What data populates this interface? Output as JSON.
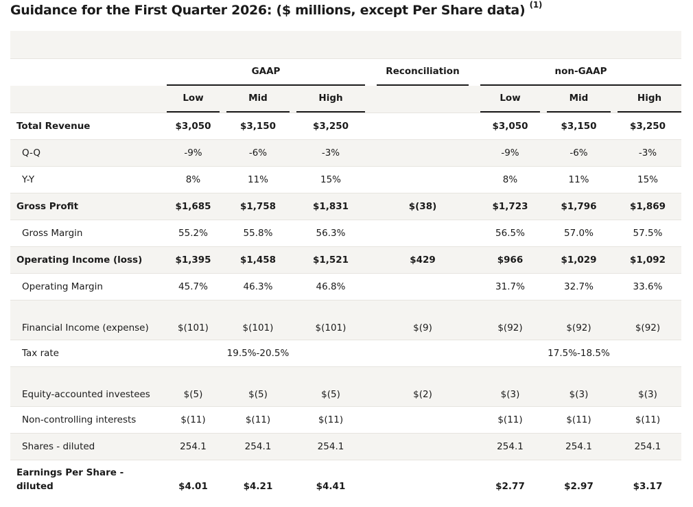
{
  "title": "Guidance for the First Quarter 2026: ($ millions, except Per Share data)",
  "title_note": "(1)",
  "groups": {
    "gaap": "GAAP",
    "recon": "Reconciliation",
    "nongaap": "non-GAAP"
  },
  "subheaders": [
    "Low",
    "Mid",
    "High",
    "Low",
    "Mid",
    "High"
  ],
  "rows": [
    {
      "label": "Total Revenue",
      "bold": true,
      "values": [
        "$3,050",
        "$3,150",
        "$3,250",
        "",
        "$3,050",
        "$3,150",
        "$3,250"
      ]
    },
    {
      "label": "Q-Q",
      "values": [
        "-9%",
        "-6%",
        "-3%",
        "",
        "-9%",
        "-6%",
        "-3%"
      ]
    },
    {
      "label": "Y-Y",
      "values": [
        "8%",
        "11%",
        "15%",
        "",
        "8%",
        "11%",
        "15%"
      ]
    },
    {
      "label": "Gross Profit",
      "bold": true,
      "values": [
        "$1,685",
        "$1,758",
        "$1,831",
        "$(38)",
        "$1,723",
        "$1,796",
        "$1,869"
      ]
    },
    {
      "label": "Gross Margin",
      "values": [
        "55.2%",
        "55.8%",
        "56.3%",
        "",
        "56.5%",
        "57.0%",
        "57.5%"
      ]
    },
    {
      "label": "Operating Income (loss)",
      "bold": true,
      "values": [
        "$1,395",
        "$1,458",
        "$1,521",
        "$429",
        "$966",
        "$1,029",
        "$1,092"
      ]
    },
    {
      "label": "Operating Margin",
      "values": [
        "45.7%",
        "46.3%",
        "46.8%",
        "",
        "31.7%",
        "32.7%",
        "33.6%"
      ]
    },
    {
      "label": "Financial Income (expense)",
      "tall": true,
      "values": [
        "$(101)",
        "$(101)",
        "$(101)",
        "$(9)",
        "$(92)",
        "$(92)",
        "$(92)"
      ]
    },
    {
      "label": "Tax rate",
      "values": [
        "",
        "19.5%-20.5%",
        "",
        "",
        "",
        "17.5%-18.5%",
        ""
      ]
    },
    {
      "label": "Equity-accounted investees",
      "tall": true,
      "values": [
        "$(5)",
        "$(5)",
        "$(5)",
        "$(2)",
        "$(3)",
        "$(3)",
        "$(3)"
      ]
    },
    {
      "label": "Non-controlling interests",
      "values": [
        "$(11)",
        "$(11)",
        "$(11)",
        "",
        "$(11)",
        "$(11)",
        "$(11)"
      ]
    },
    {
      "label": "Shares - diluted",
      "values": [
        "254.1",
        "254.1",
        "254.1",
        "",
        "254.1",
        "254.1",
        "254.1"
      ]
    },
    {
      "label": "Earnings Per Share - diluted",
      "bold": true,
      "eps": true,
      "values": [
        "$4.01",
        "$4.21",
        "$4.41",
        "",
        "$2.77",
        "$2.97",
        "$3.17"
      ]
    }
  ]
}
